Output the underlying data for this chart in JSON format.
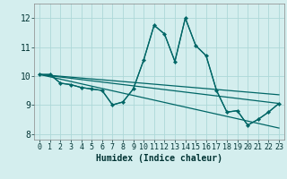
{
  "xlabel": "Humidex (Indice chaleur)",
  "background_color": "#d4eeee",
  "grid_color": "#add8d8",
  "line_color": "#006666",
  "xlim": [
    -0.5,
    23.5
  ],
  "ylim": [
    7.8,
    12.5
  ],
  "yticks": [
    8,
    9,
    10,
    11,
    12
  ],
  "xticks": [
    0,
    1,
    2,
    3,
    4,
    5,
    6,
    7,
    8,
    9,
    10,
    11,
    12,
    13,
    14,
    15,
    16,
    17,
    18,
    19,
    20,
    21,
    22,
    23
  ],
  "series_main": {
    "x": [
      0,
      1,
      2,
      3,
      4,
      5,
      6,
      7,
      8,
      9,
      10,
      11,
      12,
      13,
      14,
      15,
      16,
      17,
      18,
      19,
      20,
      21,
      22,
      23
    ],
    "y": [
      10.05,
      10.05,
      9.75,
      9.7,
      9.6,
      9.55,
      9.5,
      9.0,
      9.1,
      9.55,
      10.55,
      11.75,
      11.45,
      10.5,
      12.0,
      11.05,
      10.7,
      9.5,
      8.75,
      8.8,
      8.3,
      8.5,
      8.75,
      9.05
    ]
  },
  "series_line2": {
    "x": [
      0,
      1,
      2,
      3,
      4,
      5,
      6,
      7,
      8,
      9,
      10,
      11,
      12,
      13,
      14,
      15,
      16,
      17,
      18,
      19,
      20,
      21,
      22,
      23
    ],
    "y": [
      10.05,
      10.05,
      9.75,
      9.7,
      9.6,
      9.55,
      9.5,
      9.0,
      9.1,
      9.55,
      10.55,
      11.75,
      11.45,
      10.5,
      12.0,
      11.05,
      10.7,
      9.5,
      8.75,
      8.8,
      8.3,
      8.5,
      8.75,
      9.05
    ]
  },
  "line_straight1": {
    "x": [
      0,
      23
    ],
    "y": [
      10.05,
      9.35
    ]
  },
  "line_straight2": {
    "x": [
      0,
      23
    ],
    "y": [
      10.05,
      8.2
    ]
  },
  "line_straight3": {
    "x": [
      0,
      23
    ],
    "y": [
      10.05,
      9.05
    ]
  }
}
